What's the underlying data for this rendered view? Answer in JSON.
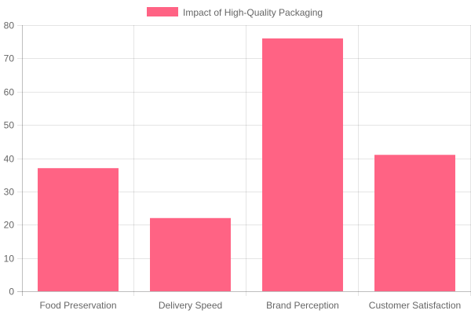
{
  "chart_data": {
    "type": "bar",
    "categories": [
      "Food Preservation",
      "Delivery Speed",
      "Brand Perception",
      "Customer Satisfaction"
    ],
    "series": [
      {
        "name": "Impact of High-Quality Packaging",
        "values": [
          37,
          22,
          76,
          41
        ],
        "color": "#ff6384"
      }
    ],
    "ylim": [
      0,
      80
    ],
    "y_ticks": [
      0,
      10,
      20,
      30,
      40,
      50,
      60,
      70,
      80
    ],
    "grid": true,
    "legend_position": "top-center"
  }
}
